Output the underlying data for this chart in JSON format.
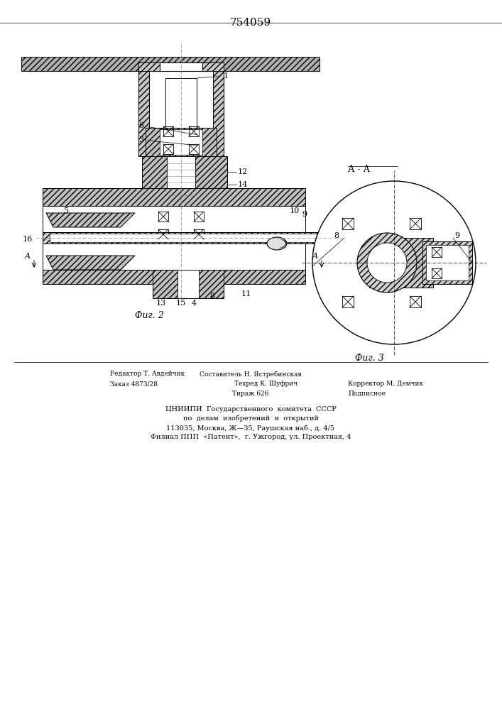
{
  "title": "754059",
  "fig2_caption": "Фиг. 2",
  "fig3_caption": "Фиг. 3",
  "section_label": "А-А",
  "footer_lines": [
    [
      "Редактор Т. Авдейчик",
      "Составитель Н. Ястребинская",
      ""
    ],
    [
      "Заказ 4873/28",
      "Техред К. Шуфрич     Корректор М. Демчик",
      ""
    ],
    [
      "",
      "Тираж 626              Подписное",
      ""
    ],
    [
      "",
      "",
      ""
    ],
    [
      "ЦНИИПИ  Государственного  комитета  СССР",
      "",
      ""
    ],
    [
      "по  делам  изобретений  и  открытий",
      "",
      ""
    ],
    [
      "113035, Москва, Ж—35, Раушская наб., д. 4/5",
      "",
      ""
    ],
    [
      "Филиал ППП  «Патент»,  г. Ужгород, ул. Проектная, 4",
      "",
      ""
    ]
  ],
  "background_color": "#ffffff",
  "line_color": "#000000",
  "hatch_color": "#000000",
  "hatch_bg": "#e8e8e8"
}
